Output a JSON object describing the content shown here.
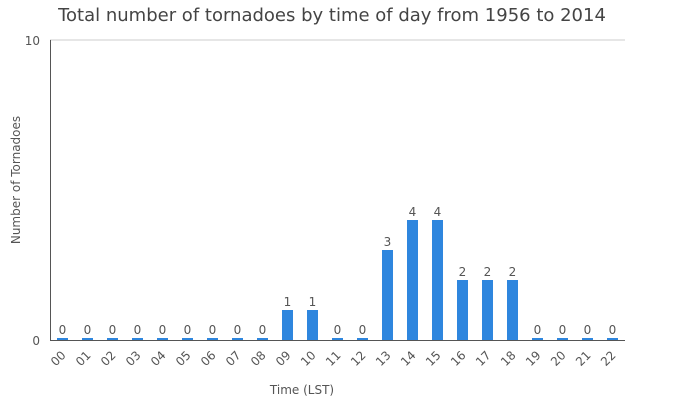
{
  "chart_data": {
    "type": "bar",
    "title": "Total number of tornadoes by time of day from 1956 to 2014",
    "xlabel": "Time (LST)",
    "ylabel": "Number of Tornadoes",
    "ylim": [
      0,
      10
    ],
    "yticks": [
      "0",
      "10"
    ],
    "categories": [
      "00",
      "01",
      "02",
      "03",
      "04",
      "05",
      "06",
      "07",
      "08",
      "09",
      "10",
      "11",
      "12",
      "13",
      "14",
      "15",
      "16",
      "17",
      "18",
      "19",
      "20",
      "21",
      "22"
    ],
    "values": [
      0,
      0,
      0,
      0,
      0,
      0,
      0,
      0,
      0,
      1,
      1,
      0,
      0,
      3,
      4,
      4,
      2,
      2,
      2,
      0,
      0,
      0,
      0
    ],
    "bar_color": "#2e86de",
    "grid": true,
    "legend": "none"
  }
}
